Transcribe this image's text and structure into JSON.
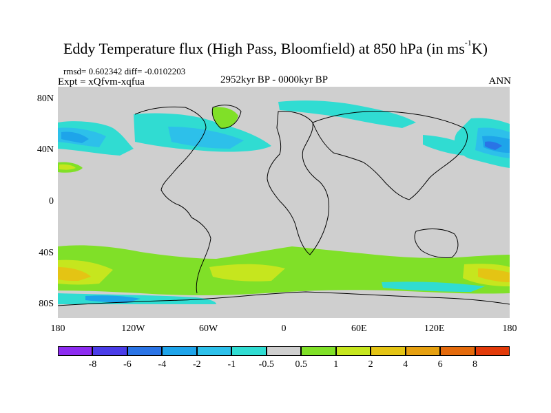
{
  "title_main": "Eddy Temperature flux (High Pass, Bloomfield) at 850 hPa (in ms",
  "title_sup": "-1",
  "title_end": "K)",
  "stats_line": "rmsd= 0.602342 diff= -0.0102203",
  "expt_line": "Expt = xQfvm-xqfua",
  "period": "2952kyr BP - 0000kyr BP",
  "season": "ANN",
  "lat_labels": [
    {
      "text": "80N",
      "lat": 80
    },
    {
      "text": "40N",
      "lat": 40
    },
    {
      "text": "0",
      "lat": 0
    },
    {
      "text": "40S",
      "lat": -40
    },
    {
      "text": "80S",
      "lat": -80
    }
  ],
  "lon_labels": [
    {
      "text": "180",
      "lon": -180
    },
    {
      "text": "120W",
      "lon": -120
    },
    {
      "text": "60W",
      "lon": -60
    },
    {
      "text": "0",
      "lon": 0
    },
    {
      "text": "60E",
      "lon": 60
    },
    {
      "text": "120E",
      "lon": 120
    },
    {
      "text": "180",
      "lon": 180
    }
  ],
  "colorbar": {
    "colors": [
      "#8d2cf0",
      "#4a3ce8",
      "#2a74e6",
      "#1ea4ea",
      "#2dc0ea",
      "#30dcd2",
      "#cfcfcf",
      "#80e028",
      "#c6e61e",
      "#e4c414",
      "#e6a010",
      "#e46a0c",
      "#e23a0a"
    ],
    "labels": [
      "-8",
      "-6",
      "-4",
      "-2",
      "-1",
      "-0.5",
      "0.5",
      "1",
      "2",
      "4",
      "6",
      "8"
    ]
  },
  "colors": {
    "land_neutral": "#cfcfcf",
    "coast": "#000000"
  }
}
